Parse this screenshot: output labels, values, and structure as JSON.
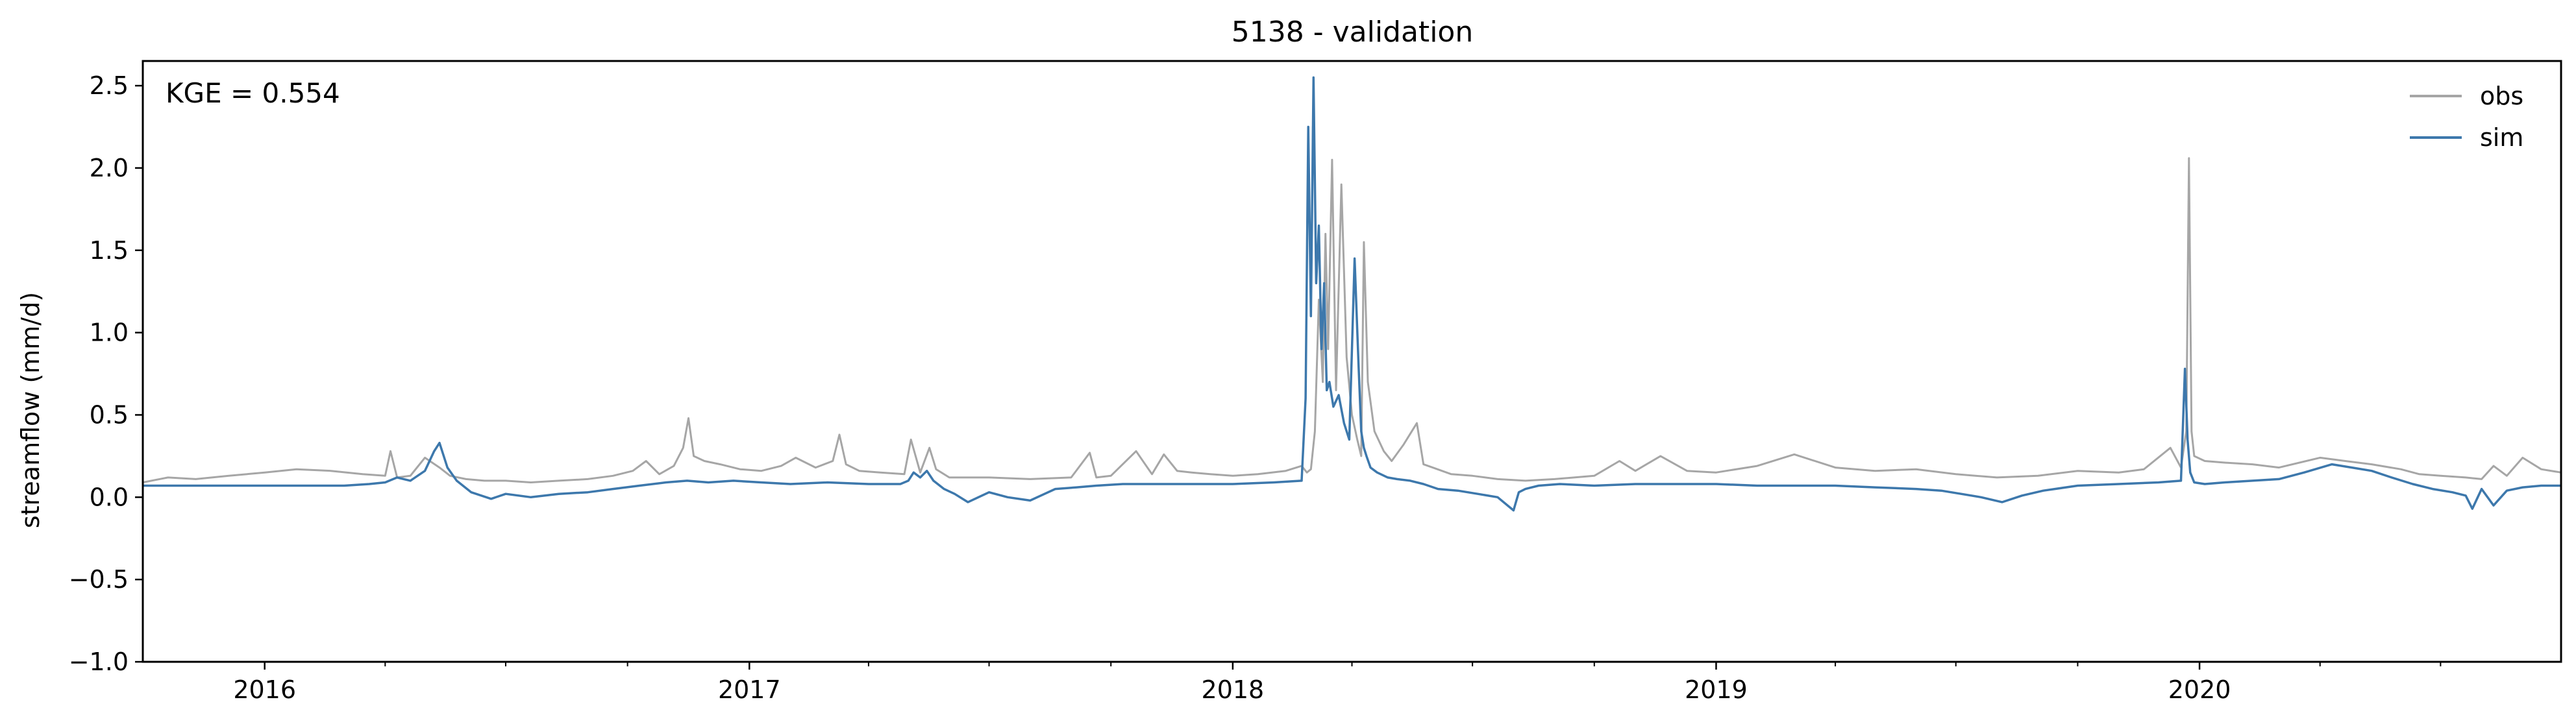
{
  "chart_data": {
    "type": "line",
    "title": "5138 - validation",
    "xlabel": "",
    "ylabel": "streamflow (mm/d)",
    "annotation": "KGE = 0.554",
    "xlim": [
      "2015-10-01",
      "2020-09-30"
    ],
    "ylim": [
      -1.0,
      2.65
    ],
    "yticks": [
      -1.0,
      -0.5,
      0.0,
      0.5,
      1.0,
      1.5,
      2.0,
      2.5
    ],
    "ytick_labels": [
      "−1.0",
      "−0.5",
      "0.0",
      "0.5",
      "1.0",
      "1.5",
      "2.0",
      "2.5"
    ],
    "xticks": [
      "2016-01-01",
      "2017-01-01",
      "2018-01-01",
      "2019-01-01",
      "2020-01-01"
    ],
    "xtick_labels": [
      "2016",
      "2017",
      "2018",
      "2019",
      "2020"
    ],
    "grid": false,
    "legend_position": "top-right",
    "series": [
      {
        "name": "obs",
        "color": "#a6a6a6",
        "x": [
          "2015-10-01",
          "2015-10-20",
          "2015-11-10",
          "2015-12-05",
          "2016-01-01",
          "2016-01-25",
          "2016-02-20",
          "2016-03-15",
          "2016-04-01",
          "2016-04-05",
          "2016-04-10",
          "2016-04-20",
          "2016-05-01",
          "2016-05-12",
          "2016-05-20",
          "2016-06-01",
          "2016-06-15",
          "2016-07-01",
          "2016-07-20",
          "2016-08-10",
          "2016-09-01",
          "2016-09-20",
          "2016-10-05",
          "2016-10-15",
          "2016-10-25",
          "2016-11-05",
          "2016-11-12",
          "2016-11-16",
          "2016-11-20",
          "2016-11-28",
          "2016-12-10",
          "2016-12-25",
          "2017-01-10",
          "2017-01-25",
          "2017-02-05",
          "2017-02-20",
          "2017-03-05",
          "2017-03-10",
          "2017-03-15",
          "2017-03-25",
          "2017-04-10",
          "2017-04-28",
          "2017-05-03",
          "2017-05-10",
          "2017-05-17",
          "2017-05-22",
          "2017-06-01",
          "2017-07-01",
          "2017-08-01",
          "2017-09-01",
          "2017-09-15",
          "2017-09-20",
          "2017-10-01",
          "2017-10-20",
          "2017-11-01",
          "2017-11-10",
          "2017-11-20",
          "2017-12-01",
          "2017-12-15",
          "2018-01-01",
          "2018-01-20",
          "2018-02-10",
          "2018-02-22",
          "2018-02-26",
          "2018-03-01",
          "2018-03-04",
          "2018-03-07",
          "2018-03-10",
          "2018-03-12",
          "2018-03-14",
          "2018-03-17",
          "2018-03-20",
          "2018-03-24",
          "2018-03-28",
          "2018-04-01",
          "2018-04-05",
          "2018-04-08",
          "2018-04-10",
          "2018-04-13",
          "2018-04-18",
          "2018-04-25",
          "2018-05-01",
          "2018-05-10",
          "2018-05-20",
          "2018-05-25",
          "2018-06-01",
          "2018-06-15",
          "2018-07-01",
          "2018-07-20",
          "2018-08-10",
          "2018-09-01",
          "2018-10-01",
          "2018-10-20",
          "2018-11-01",
          "2018-11-20",
          "2018-12-10",
          "2019-01-01",
          "2019-02-01",
          "2019-03-01",
          "2019-04-01",
          "2019-05-01",
          "2019-06-01",
          "2019-07-01",
          "2019-08-01",
          "2019-09-01",
          "2019-10-01",
          "2019-11-01",
          "2019-11-20",
          "2019-12-10",
          "2019-12-18",
          "2019-12-22",
          "2019-12-24",
          "2019-12-26",
          "2019-12-28",
          "2020-01-05",
          "2020-01-20",
          "2020-02-10",
          "2020-03-01",
          "2020-04-01",
          "2020-04-20",
          "2020-05-10",
          "2020-06-01",
          "2020-06-15",
          "2020-07-01",
          "2020-07-20",
          "2020-08-01",
          "2020-08-10",
          "2020-08-20",
          "2020-09-01",
          "2020-09-15",
          "2020-09-30"
        ],
        "y": [
          0.09,
          0.12,
          0.11,
          0.13,
          0.15,
          0.17,
          0.16,
          0.14,
          0.13,
          0.28,
          0.12,
          0.13,
          0.24,
          0.18,
          0.13,
          0.11,
          0.1,
          0.1,
          0.09,
          0.1,
          0.11,
          0.13,
          0.16,
          0.22,
          0.14,
          0.19,
          0.3,
          0.48,
          0.25,
          0.22,
          0.2,
          0.17,
          0.16,
          0.19,
          0.24,
          0.18,
          0.22,
          0.38,
          0.2,
          0.16,
          0.15,
          0.14,
          0.35,
          0.15,
          0.3,
          0.17,
          0.12,
          0.12,
          0.11,
          0.12,
          0.27,
          0.12,
          0.13,
          0.28,
          0.14,
          0.26,
          0.16,
          0.15,
          0.14,
          0.13,
          0.14,
          0.16,
          0.19,
          0.15,
          0.17,
          0.4,
          1.2,
          0.7,
          1.6,
          0.9,
          2.05,
          0.65,
          1.9,
          0.85,
          0.5,
          0.35,
          0.25,
          1.55,
          0.7,
          0.4,
          0.28,
          0.22,
          0.32,
          0.45,
          0.2,
          0.18,
          0.14,
          0.13,
          0.11,
          0.1,
          0.11,
          0.13,
          0.22,
          0.16,
          0.25,
          0.16,
          0.15,
          0.19,
          0.26,
          0.18,
          0.16,
          0.17,
          0.14,
          0.12,
          0.13,
          0.16,
          0.15,
          0.17,
          0.3,
          0.18,
          0.4,
          2.06,
          0.4,
          0.25,
          0.22,
          0.21,
          0.2,
          0.18,
          0.24,
          0.22,
          0.2,
          0.17,
          0.14,
          0.13,
          0.12,
          0.11,
          0.19,
          0.13,
          0.24,
          0.17,
          0.15
        ]
      },
      {
        "name": "sim",
        "color": "#3d78ac",
        "x": [
          "2015-10-01",
          "2015-11-01",
          "2015-12-01",
          "2016-01-01",
          "2016-02-01",
          "2016-03-01",
          "2016-03-20",
          "2016-04-01",
          "2016-04-10",
          "2016-04-20",
          "2016-05-01",
          "2016-05-08",
          "2016-05-12",
          "2016-05-18",
          "2016-05-25",
          "2016-06-05",
          "2016-06-20",
          "2016-07-01",
          "2016-07-20",
          "2016-08-10",
          "2016-09-01",
          "2016-09-20",
          "2016-10-10",
          "2016-10-30",
          "2016-11-15",
          "2016-12-01",
          "2016-12-20",
          "2017-01-10",
          "2017-02-01",
          "2017-03-01",
          "2017-04-01",
          "2017-04-25",
          "2017-05-01",
          "2017-05-05",
          "2017-05-10",
          "2017-05-15",
          "2017-05-20",
          "2017-05-28",
          "2017-06-05",
          "2017-06-15",
          "2017-07-01",
          "2017-07-15",
          "2017-08-01",
          "2017-08-20",
          "2017-09-05",
          "2017-09-20",
          "2017-10-10",
          "2017-11-01",
          "2017-12-01",
          "2018-01-01",
          "2018-02-01",
          "2018-02-22",
          "2018-02-25",
          "2018-02-27",
          "2018-03-01",
          "2018-03-03",
          "2018-03-05",
          "2018-03-07",
          "2018-03-09",
          "2018-03-11",
          "2018-03-13",
          "2018-03-15",
          "2018-03-18",
          "2018-03-22",
          "2018-03-26",
          "2018-03-30",
          "2018-04-03",
          "2018-04-06",
          "2018-04-08",
          "2018-04-10",
          "2018-04-12",
          "2018-04-15",
          "2018-04-20",
          "2018-04-28",
          "2018-05-05",
          "2018-05-15",
          "2018-05-25",
          "2018-06-05",
          "2018-06-20",
          "2018-07-05",
          "2018-07-20",
          "2018-08-01",
          "2018-08-05",
          "2018-08-10",
          "2018-08-20",
          "2018-09-05",
          "2018-10-01",
          "2018-11-01",
          "2018-12-01",
          "2019-01-01",
          "2019-02-01",
          "2019-03-01",
          "2019-04-01",
          "2019-05-01",
          "2019-06-01",
          "2019-06-20",
          "2019-07-05",
          "2019-07-20",
          "2019-08-05",
          "2019-08-20",
          "2019-09-05",
          "2019-10-01",
          "2019-11-01",
          "2019-12-01",
          "2019-12-18",
          "2019-12-21",
          "2019-12-23",
          "2019-12-25",
          "2019-12-28",
          "2020-01-05",
          "2020-01-20",
          "2020-02-10",
          "2020-03-01",
          "2020-03-20",
          "2020-04-10",
          "2020-04-25",
          "2020-05-10",
          "2020-05-25",
          "2020-06-10",
          "2020-06-25",
          "2020-07-10",
          "2020-07-20",
          "2020-07-25",
          "2020-08-01",
          "2020-08-10",
          "2020-08-20",
          "2020-09-01",
          "2020-09-15",
          "2020-09-30"
        ],
        "y": [
          0.07,
          0.07,
          0.07,
          0.07,
          0.07,
          0.07,
          0.08,
          0.09,
          0.12,
          0.1,
          0.16,
          0.28,
          0.33,
          0.18,
          0.1,
          0.03,
          -0.01,
          0.02,
          0.0,
          0.02,
          0.03,
          0.05,
          0.07,
          0.09,
          0.1,
          0.09,
          0.1,
          0.09,
          0.08,
          0.09,
          0.08,
          0.08,
          0.1,
          0.15,
          0.12,
          0.16,
          0.1,
          0.05,
          0.02,
          -0.03,
          0.03,
          0.0,
          -0.02,
          0.05,
          0.06,
          0.07,
          0.08,
          0.08,
          0.08,
          0.08,
          0.09,
          0.1,
          0.6,
          2.25,
          1.1,
          2.55,
          1.3,
          1.65,
          0.9,
          1.3,
          0.65,
          0.7,
          0.55,
          0.62,
          0.45,
          0.35,
          1.45,
          0.8,
          0.4,
          0.3,
          0.25,
          0.18,
          0.15,
          0.12,
          0.11,
          0.1,
          0.08,
          0.05,
          0.04,
          0.02,
          0.0,
          -0.08,
          0.03,
          0.05,
          0.07,
          0.08,
          0.07,
          0.08,
          0.08,
          0.08,
          0.07,
          0.07,
          0.07,
          0.06,
          0.05,
          0.04,
          0.02,
          0.0,
          -0.03,
          0.01,
          0.04,
          0.07,
          0.08,
          0.09,
          0.1,
          0.78,
          0.35,
          0.15,
          0.09,
          0.08,
          0.09,
          0.1,
          0.11,
          0.15,
          0.2,
          0.18,
          0.16,
          0.12,
          0.08,
          0.05,
          0.03,
          0.01,
          -0.07,
          0.05,
          -0.05,
          0.04,
          0.06,
          0.07,
          0.07
        ]
      }
    ]
  }
}
